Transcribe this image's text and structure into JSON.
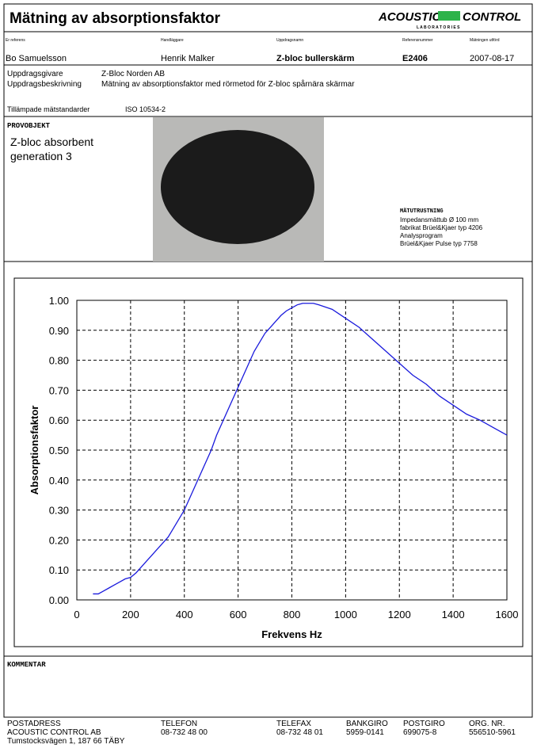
{
  "header": {
    "title": "Mätning av absorptionsfaktor",
    "logo": {
      "left": "ACOUSTIC",
      "right": "CONTROL",
      "sub": "L A B O R A T O R I E S"
    }
  },
  "info": {
    "labels": [
      "Er referens",
      "Handläggare",
      "Uppdragsnamn",
      "Referensnummer",
      "Mätningen utförd"
    ],
    "values": [
      "Bo Samuelsson",
      "Henrik Malker",
      "Z-bloc bullerskärm",
      "E2406",
      "2007-08-17"
    ]
  },
  "assignment": {
    "client_label": "Uppdragsgivare",
    "client": "Z-Bloc Norden AB",
    "description_label": "Uppdragsbeskrivning",
    "description": "Mätning av absorptionsfaktor med rörmetod för Z-bloc spårnära skärmar",
    "standards_label": "Tillämpade mätstandarder",
    "standards": "ISO 10534-2"
  },
  "sample": {
    "heading": "PROVOBJEKT",
    "name": [
      "Z-bloc absorbent",
      "generation 3"
    ]
  },
  "equipment": {
    "heading": "MÄTUTRUSTNING",
    "lines": [
      "Impedansmättub Ø 100 mm",
      "fabrikat Brüel&Kjaer typ 4206",
      "Analysprogram",
      "Brüel&Kjaer Pulse typ 7758"
    ]
  },
  "chart_data": {
    "type": "line",
    "x_label": "Frekvens Hz",
    "y_label": "Absorptionsfaktor",
    "color": "#1a1adc",
    "grid": true,
    "x": [
      60,
      80,
      100,
      120,
      140,
      160,
      180,
      200,
      220,
      240,
      260,
      280,
      300,
      320,
      340,
      360,
      380,
      400,
      420,
      440,
      460,
      480,
      500,
      520,
      540,
      560,
      580,
      600,
      620,
      640,
      660,
      680,
      700,
      720,
      740,
      760,
      780,
      800,
      820,
      840,
      860,
      880,
      900,
      950,
      1000,
      1050,
      1100,
      1150,
      1200,
      1250,
      1300,
      1350,
      1400,
      1450,
      1500,
      1550,
      1600
    ],
    "values": [
      0.02,
      0.02,
      0.03,
      0.04,
      0.05,
      0.06,
      0.07,
      0.075,
      0.09,
      0.11,
      0.13,
      0.15,
      0.17,
      0.19,
      0.21,
      0.24,
      0.27,
      0.3,
      0.34,
      0.38,
      0.42,
      0.46,
      0.5,
      0.55,
      0.59,
      0.63,
      0.67,
      0.71,
      0.75,
      0.79,
      0.83,
      0.86,
      0.89,
      0.91,
      0.93,
      0.95,
      0.965,
      0.975,
      0.985,
      0.99,
      0.99,
      0.99,
      0.985,
      0.97,
      0.94,
      0.91,
      0.87,
      0.83,
      0.79,
      0.75,
      0.72,
      0.68,
      0.65,
      0.62,
      0.6,
      0.575,
      0.55
    ],
    "xlim": [
      0,
      1600
    ],
    "xticks": [
      0,
      200,
      400,
      600,
      800,
      1000,
      1200,
      1400,
      1600
    ],
    "ylim": [
      0,
      1
    ],
    "yticks": [
      {
        "value": 0,
        "label": "0.00"
      },
      {
        "value": 0.1,
        "label": "0.10"
      },
      {
        "value": 0.2,
        "label": "0.20"
      },
      {
        "value": 0.3,
        "label": "0.30"
      },
      {
        "value": 0.4,
        "label": "0.40"
      },
      {
        "value": 0.5,
        "label": "0.50"
      },
      {
        "value": 0.6,
        "label": "0.60"
      },
      {
        "value": 0.7,
        "label": "0.70"
      },
      {
        "value": 0.8,
        "label": "0.80"
      },
      {
        "value": 0.9,
        "label": "0.90"
      },
      {
        "value": 1,
        "label": "1.00"
      }
    ]
  },
  "comment": {
    "heading": "KOMMENTAR"
  },
  "footer": {
    "columns": [
      [
        "POSTADRESS",
        "ACOUSTIC CONTROL AB",
        "Tumstocksvägen 1, 187 66 TÄBY"
      ],
      [
        "TELEFON",
        "08-732 48 00"
      ],
      [
        "TELEFAX",
        "08-732 48 01"
      ],
      [
        "BANKGIRO",
        "5959-0141"
      ],
      [
        "POSTGIRO",
        "699075-8"
      ],
      [
        "ORG. NR.",
        "556510-5961"
      ]
    ]
  }
}
